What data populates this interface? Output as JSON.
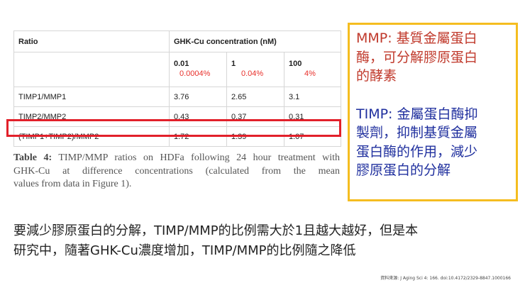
{
  "table": {
    "header_ratio": "Ratio",
    "header_concentration": "GHK-Cu concentration (nM)",
    "concentrations": [
      "0.01",
      "1",
      "100"
    ],
    "percent_annotations": [
      "0.0004%",
      "0.04%",
      "4%"
    ],
    "rows": [
      {
        "label": "TIMP1/MMP1",
        "values": [
          "3.76",
          "2.65",
          "3.1"
        ]
      },
      {
        "label": "TIMP2/MMP2",
        "values": [
          "0.43",
          "0.37",
          "0.31"
        ]
      },
      {
        "label": "(TIMP1+TIMP2)/MMP2",
        "values": [
          "1.72",
          "1.39",
          "1.07"
        ],
        "highlighted": true
      }
    ]
  },
  "caption": {
    "bold": "Table 4:",
    "line1": "TIMP/MMP ratios on HDFa following 24 hour treatment with",
    "line2": "GHK-Cu at difference concentrations (calculated from the mean",
    "line3": "values from data in Figure 1)."
  },
  "note": {
    "mmp_lines": [
      "MMP: 基質金屬蛋白",
      "酶，可分解膠原蛋白",
      "的酵素"
    ],
    "timp_lines": [
      "TIMP: 金屬蛋白酶抑",
      "製劑，抑制基質金屬",
      "蛋白酶的作用，減少",
      "膠原蛋白的分解"
    ],
    "mmp_color": "#c0392b",
    "timp_color": "#1f2f9e",
    "border_color": "#f5bd20"
  },
  "body": {
    "line1": "要減少膠原蛋白的分解，TIMP/MMP的比例需大於1且越大越好，但是本",
    "line2": "研究中，隨著GHK-Cu濃度增加，TIMP/MMP的比例隨之降低"
  },
  "source": "資料來源: J Aging Sci 4: 166. doi:10.4172/2329-8847.1000166",
  "highlight_color": "#e2202a"
}
